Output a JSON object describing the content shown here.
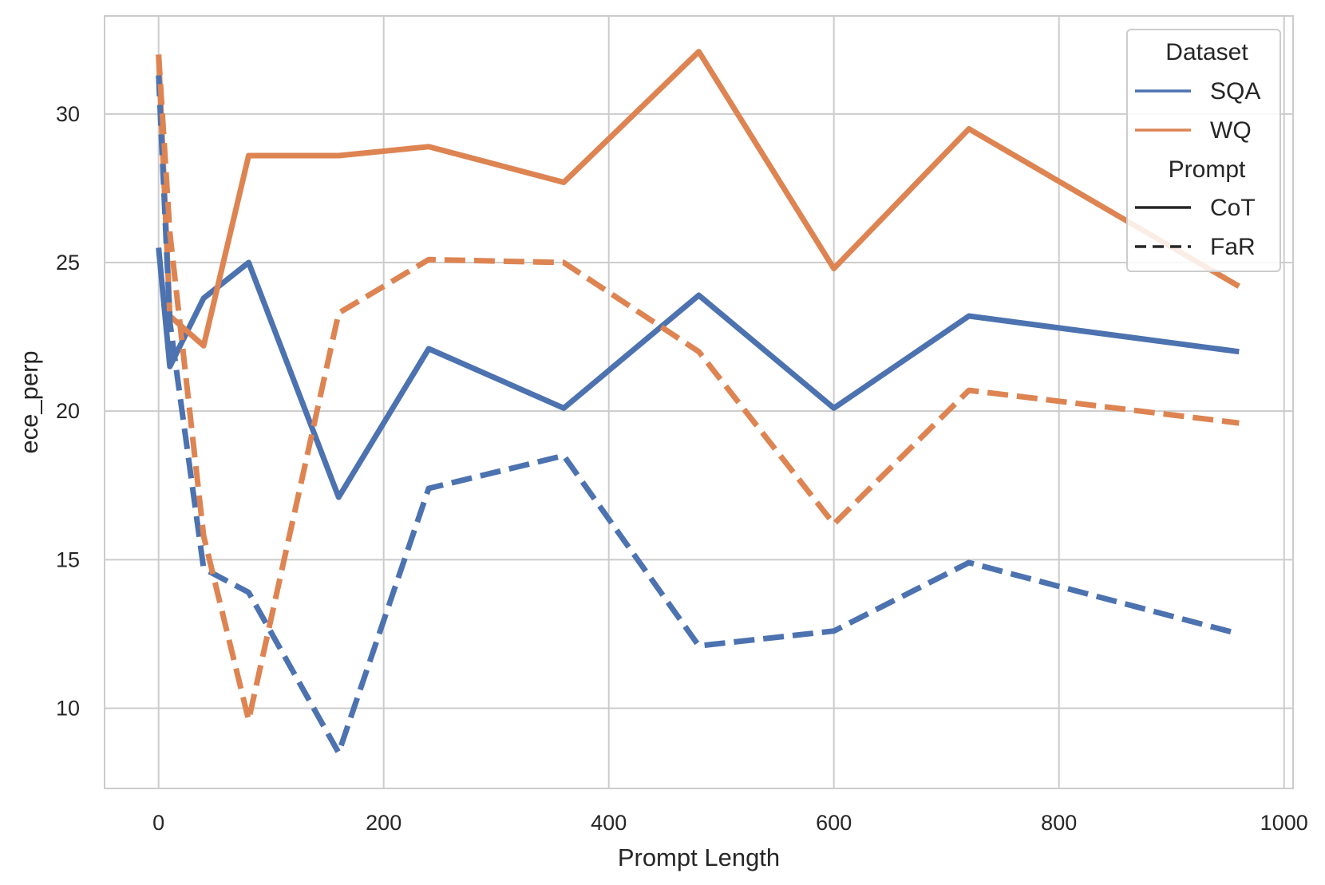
{
  "chart_data": {
    "type": "line",
    "xlabel": "Prompt Length",
    "ylabel": "ece_perp",
    "xlim": [
      -48,
      1008
    ],
    "ylim": [
      7.3,
      33.3
    ],
    "xticks": [
      0,
      200,
      400,
      600,
      800,
      1000
    ],
    "yticks": [
      10,
      15,
      20,
      25,
      30
    ],
    "grid": true,
    "legend_position": "top-right",
    "legend": {
      "hue_title": "Dataset",
      "style_title": "Prompt",
      "hue_entries": [
        {
          "label": "SQA",
          "color": "#4c72b0"
        },
        {
          "label": "WQ",
          "color": "#dd8452"
        }
      ],
      "style_entries": [
        {
          "label": "CoT",
          "dash": "solid"
        },
        {
          "label": "FaR",
          "dash": "dashed"
        }
      ]
    },
    "series": [
      {
        "dataset": "SQA",
        "prompt": "CoT",
        "color": "#4c72b0",
        "dash": "solid",
        "x": [
          0,
          10,
          40,
          80,
          160,
          240,
          360,
          480,
          600,
          720,
          960
        ],
        "y": [
          25.5,
          21.5,
          23.8,
          25.0,
          17.1,
          22.1,
          20.1,
          23.9,
          20.1,
          23.2,
          22.0
        ]
      },
      {
        "dataset": "WQ",
        "prompt": "CoT",
        "color": "#dd8452",
        "dash": "solid",
        "x": [
          0,
          10,
          40,
          80,
          160,
          240,
          360,
          480,
          600,
          720,
          960
        ],
        "y": [
          32.0,
          23.2,
          22.2,
          28.6,
          28.6,
          28.9,
          27.7,
          32.1,
          24.8,
          29.5,
          24.2
        ]
      },
      {
        "dataset": "SQA",
        "prompt": "FaR",
        "color": "#4c72b0",
        "dash": "dashed",
        "x": [
          0,
          10,
          40,
          80,
          160,
          240,
          360,
          480,
          600,
          720,
          960
        ],
        "y": [
          31.3,
          23.0,
          14.7,
          13.9,
          8.5,
          17.4,
          18.5,
          12.1,
          12.6,
          14.9,
          12.5
        ]
      },
      {
        "dataset": "WQ",
        "prompt": "FaR",
        "color": "#dd8452",
        "dash": "dashed",
        "x": [
          0,
          10,
          40,
          80,
          160,
          240,
          360,
          480,
          600,
          720,
          960
        ],
        "y": [
          32.0,
          26.0,
          15.8,
          9.6,
          23.3,
          25.1,
          25.0,
          22.0,
          16.2,
          20.7,
          19.6
        ]
      }
    ]
  }
}
